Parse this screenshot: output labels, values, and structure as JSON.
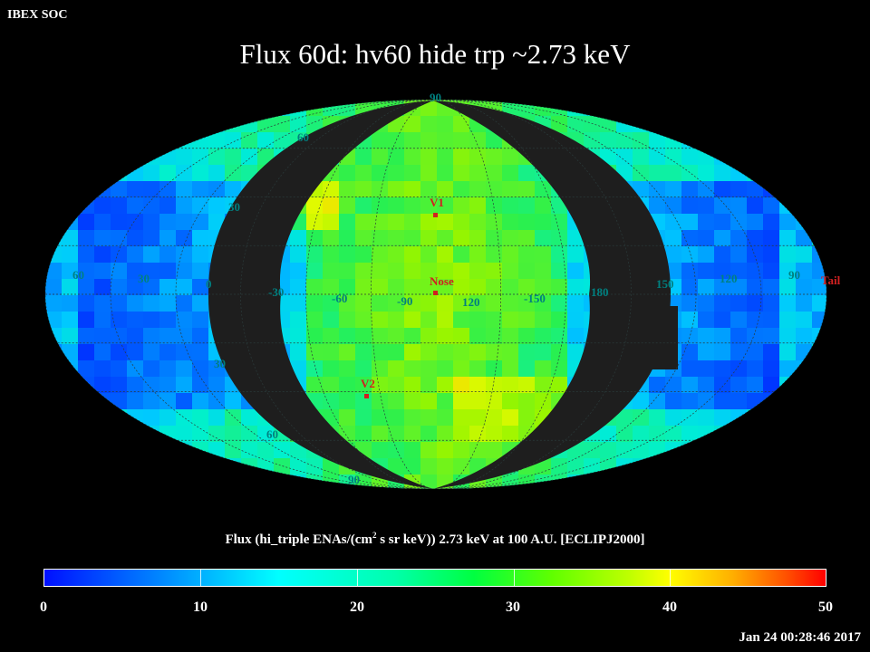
{
  "header": {
    "soc_label": "IBEX SOC",
    "title": "Flux   60d: hv60 hide trp ~2.73 keV"
  },
  "map": {
    "projection": "aitoff",
    "grid_labels": {
      "lat_top": "90",
      "lat_60_north": "60",
      "lat_30_north": "30",
      "lat_30_south": "30",
      "lat_60_south": "60",
      "lat_bottom": "90",
      "lon_60_left": "60",
      "lon_30_left": "30",
      "lon_0": "0",
      "lon_m30": "-30",
      "lon_m60": "-60",
      "lon_m90": "-90",
      "lon_120": "120",
      "lon_m150": "-150",
      "lon_180": "180",
      "lon_150": "150",
      "lon_120_right": "120",
      "lon_90_right": "90"
    },
    "markers": {
      "v1": "V1",
      "nose": "Nose",
      "v2": "V2",
      "tail": "Tail"
    },
    "colors": {
      "marker": "#d02020",
      "grid_label": "#008080",
      "mask": "#1e1e1e"
    }
  },
  "colorbar": {
    "title_prefix": "Flux (hi_triple ENAs/(cm",
    "title_sup": "2",
    "title_suffix": " s sr keV))  2.73 keV at 100 A.U. [ECLIPJ2000]",
    "min": 0,
    "max": 50,
    "tick_labels": [
      "0",
      "10",
      "20",
      "30",
      "40",
      "50"
    ]
  },
  "footer": {
    "timestamp": "Jan 24 00:28:46 2017"
  }
}
